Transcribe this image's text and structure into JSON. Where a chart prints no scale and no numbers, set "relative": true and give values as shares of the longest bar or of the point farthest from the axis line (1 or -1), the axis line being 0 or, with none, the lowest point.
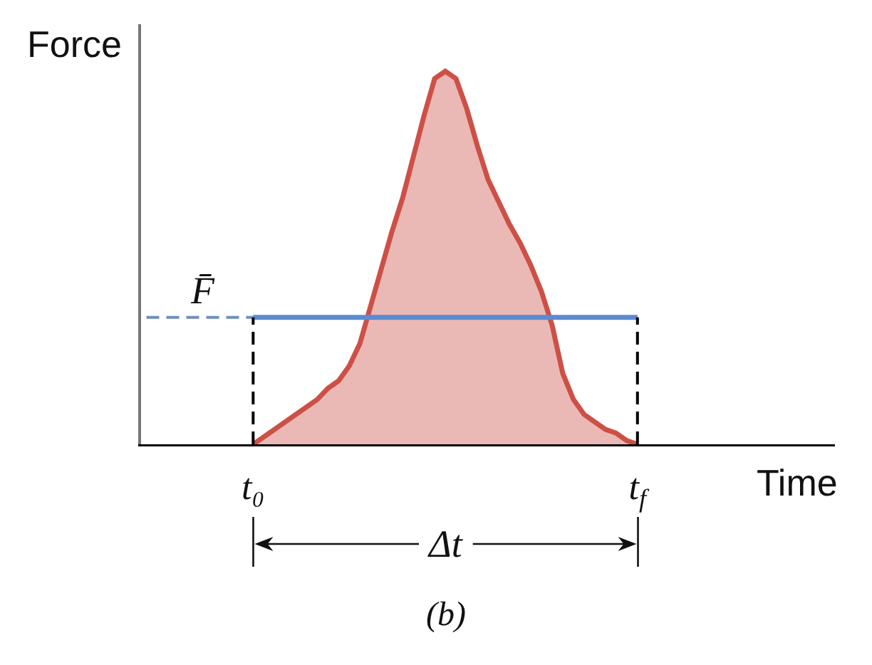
{
  "chart_data": {
    "type": "area",
    "relative": true,
    "ylabel": "Force",
    "xlabel": "Time",
    "tick_labels": "x",
    "categories": [
      null,
      null,
      null,
      null,
      null,
      null,
      null,
      null,
      null,
      null,
      "t₀",
      null,
      null,
      null,
      null,
      null,
      null,
      null,
      null,
      null,
      null,
      null,
      null,
      null,
      null,
      null,
      null,
      null,
      null,
      null,
      null,
      null,
      null,
      null,
      null,
      null,
      null,
      null,
      null,
      null,
      null,
      null,
      null,
      null,
      null,
      null,
      "t$_{f}$",
      null,
      null,
      null,
      null,
      null,
      null,
      null,
      null,
      null,
      null,
      null,
      null,
      null,
      null,
      null,
      null,
      null,
      null
    ],
    "series": [
      {
        "color": "#cd5047",
        "values": [
          null,
          null,
          null,
          null,
          null,
          null,
          null,
          null,
          null,
          null,
          0,
          0.02,
          0.04,
          0.06,
          0.08,
          0.1,
          0.12,
          0.15,
          0.17,
          0.21,
          0.27,
          0.37,
          0.47,
          0.57,
          0.66,
          0.77,
          0.88,
          0.98,
          1,
          0.98,
          0.9,
          0.8,
          0.71,
          0.65,
          0.59,
          0.54,
          0.48,
          0.41,
          0.32,
          0.19,
          0.12,
          0.08,
          0.06,
          0.04,
          0.03,
          0.01,
          0,
          null,
          null,
          null,
          null,
          null,
          null,
          null,
          null,
          null,
          null,
          null,
          null,
          null,
          null,
          null,
          null,
          null,
          null
        ]
      },
      {
        "type": "line",
        "color": "#5b8bd0",
        "values": [
          null,
          null,
          null,
          null,
          null,
          null,
          null,
          null,
          null,
          null,
          0.34,
          0.34,
          0.34,
          0.34,
          0.34,
          0.34,
          0.34,
          0.34,
          0.34,
          0.34,
          0.34,
          0.34,
          0.34,
          0.34,
          0.34,
          0.34,
          0.34,
          0.34,
          0.34,
          0.34,
          0.34,
          0.34,
          0.34,
          0.34,
          0.34,
          0.34,
          0.34,
          0.34,
          0.34,
          0.34,
          0.34,
          0.34,
          0.34,
          0.34,
          0.34,
          0.34,
          0.34,
          null,
          null,
          null,
          null,
          null,
          null,
          null,
          null,
          null,
          null,
          null,
          null,
          null,
          null,
          null,
          null,
          null,
          null
        ]
      },
      {
        "type": "line",
        "color": "#6f8fc0",
        "line_style": "dashed",
        "values": [
          0.34,
          0.34,
          0.34,
          0.34,
          0.34,
          0.34,
          0.34,
          0.34,
          0.34,
          0.34,
          0.34,
          null,
          null,
          null,
          null,
          null,
          null,
          null,
          null,
          null,
          null,
          null,
          null,
          null,
          null,
          null,
          null,
          null,
          null,
          null,
          null,
          null,
          null,
          null,
          null,
          null,
          null,
          null,
          null,
          null,
          null,
          null,
          null,
          null,
          null,
          null,
          null,
          null,
          null,
          null,
          null,
          null,
          null,
          null,
          null,
          null,
          null,
          null,
          null,
          null,
          null,
          null,
          null,
          null,
          null
        ]
      },
      {
        "type": "line",
        "color": "#000000",
        "line_style": "dashed",
        "x": [
          "t₀",
          "t₀"
        ],
        "values": [
          0,
          0.34
        ]
      },
      {
        "type": "line",
        "color": "#000000",
        "line_style": "dashed",
        "x": [
          "t$_{f}$",
          "t$_{f}$"
        ],
        "values": [
          0,
          0.34
        ]
      }
    ],
    "annotations": [
      {
        "text": "F̄",
        "y": 0.34
      },
      "Δt",
      "(b)"
    ]
  }
}
